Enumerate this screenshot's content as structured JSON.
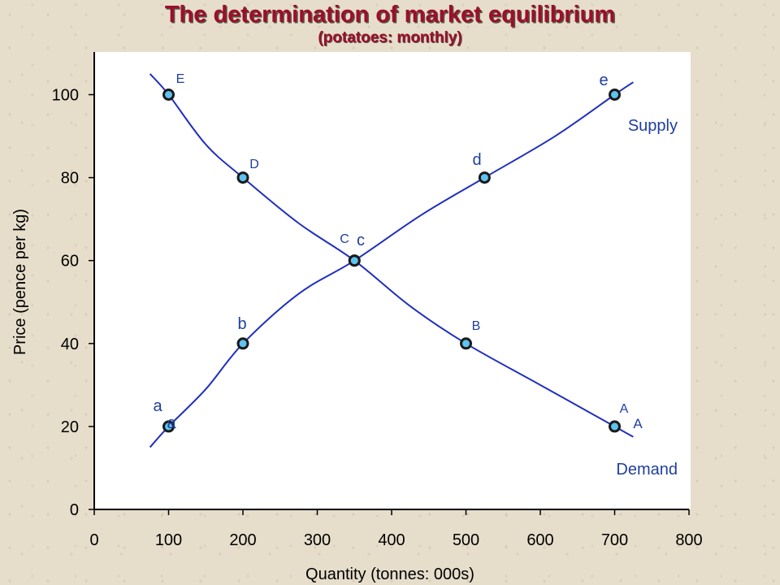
{
  "chart_data": {
    "type": "line",
    "title": "The determination of market equilibrium",
    "subtitle": "(potatoes: monthly)",
    "xlabel": "Quantity (tonnes: 000s)",
    "ylabel": "Price (pence per kg)",
    "xlim": [
      0,
      800
    ],
    "ylim": [
      0,
      110
    ],
    "xticks": [
      0,
      100,
      200,
      300,
      400,
      500,
      600,
      700,
      800
    ],
    "yticks": [
      0,
      20,
      40,
      60,
      80,
      100
    ],
    "grid": false,
    "series": [
      {
        "name": "Supply",
        "color": "#1f2fbf",
        "curve": [
          [
            75,
            15
          ],
          [
            100,
            20
          ],
          [
            150,
            29
          ],
          [
            200,
            40
          ],
          [
            275,
            52
          ],
          [
            350,
            60
          ],
          [
            440,
            71
          ],
          [
            525,
            80
          ],
          [
            620,
            90
          ],
          [
            700,
            100
          ],
          [
            725,
            103
          ]
        ],
        "points": [
          {
            "label": "a",
            "x": 100,
            "y": 20
          },
          {
            "label": "b",
            "x": 200,
            "y": 40
          },
          {
            "label": "c",
            "x": 350,
            "y": 60
          },
          {
            "label": "d",
            "x": 525,
            "y": 80
          },
          {
            "label": "e",
            "x": 700,
            "y": 100
          }
        ]
      },
      {
        "name": "Demand",
        "color": "#1f2fbf",
        "curve": [
          [
            75,
            105
          ],
          [
            100,
            100
          ],
          [
            150,
            88
          ],
          [
            200,
            80
          ],
          [
            275,
            69
          ],
          [
            350,
            60
          ],
          [
            425,
            49
          ],
          [
            500,
            40
          ],
          [
            600,
            30
          ],
          [
            700,
            20
          ],
          [
            725,
            17.5
          ]
        ],
        "points": [
          {
            "label": "E",
            "x": 100,
            "y": 100
          },
          {
            "label": "D",
            "x": 200,
            "y": 80
          },
          {
            "label": "C",
            "x": 350,
            "y": 60
          },
          {
            "label": "B",
            "x": 500,
            "y": 40
          },
          {
            "label": "A",
            "x": 700,
            "y": 20
          }
        ]
      }
    ],
    "annotations": {
      "a_extra": "a",
      "A_extra": "A"
    }
  },
  "colors": {
    "title": "#9b0f2c",
    "label": "#1f3f9f",
    "marker_fill": "#5ec3ee",
    "plot_bg": "#ffffff"
  }
}
